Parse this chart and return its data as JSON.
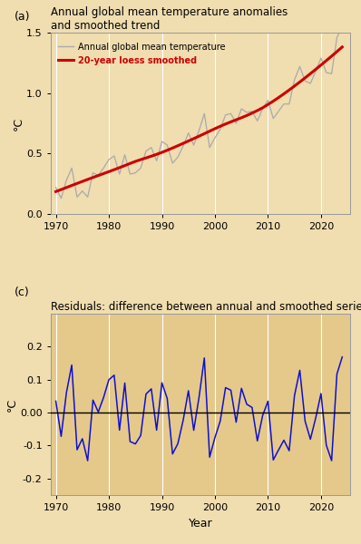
{
  "years": [
    1970,
    1971,
    1972,
    1973,
    1974,
    1975,
    1976,
    1977,
    1978,
    1979,
    1980,
    1981,
    1982,
    1983,
    1984,
    1985,
    1986,
    1987,
    1988,
    1989,
    1990,
    1991,
    1992,
    1993,
    1994,
    1995,
    1996,
    1997,
    1998,
    1999,
    2000,
    2001,
    2002,
    2003,
    2004,
    2005,
    2006,
    2007,
    2008,
    2009,
    2010,
    2011,
    2012,
    2013,
    2014,
    2015,
    2016,
    2017,
    2018,
    2019,
    2020,
    2021,
    2022,
    2023,
    2024
  ],
  "anomaly": [
    0.22,
    0.13,
    0.28,
    0.38,
    0.14,
    0.19,
    0.14,
    0.34,
    0.32,
    0.38,
    0.45,
    0.48,
    0.33,
    0.49,
    0.33,
    0.34,
    0.38,
    0.52,
    0.55,
    0.44,
    0.6,
    0.57,
    0.42,
    0.47,
    0.56,
    0.67,
    0.57,
    0.69,
    0.83,
    0.55,
    0.63,
    0.7,
    0.82,
    0.83,
    0.75,
    0.87,
    0.84,
    0.85,
    0.77,
    0.87,
    0.94,
    0.79,
    0.85,
    0.91,
    0.91,
    1.11,
    1.22,
    1.1,
    1.08,
    1.18,
    1.29,
    1.17,
    1.16,
    1.46,
    1.55
  ],
  "bg_color": "#f0ddb0",
  "panel_bg": "#f0ddb0",
  "panel2_bg": "#e4c98a",
  "annual_color": "#aaaaaa",
  "smooth_color": "#cc0000",
  "residual_color": "#1010cc",
  "zero_line_color": "#000000",
  "title1": "Annual global mean temperature anomalies\nand smoothed trend",
  "title2": "Residuals: difference between annual and smoothed series",
  "label1": "(a)",
  "label2": "(c)",
  "ylabel": "°C",
  "xlabel": "Year",
  "ylim1": [
    0.0,
    1.5
  ],
  "ylim2": [
    -0.25,
    0.3
  ],
  "yticks1": [
    0.0,
    0.5,
    1.0,
    1.5
  ],
  "yticks2": [
    -0.2,
    -0.1,
    0.0,
    0.1,
    0.2
  ],
  "xticks": [
    1970,
    1980,
    1990,
    2000,
    2010,
    2020
  ],
  "legend_annual": "Annual global mean temperature",
  "legend_smooth": "20-year loess smoothed"
}
